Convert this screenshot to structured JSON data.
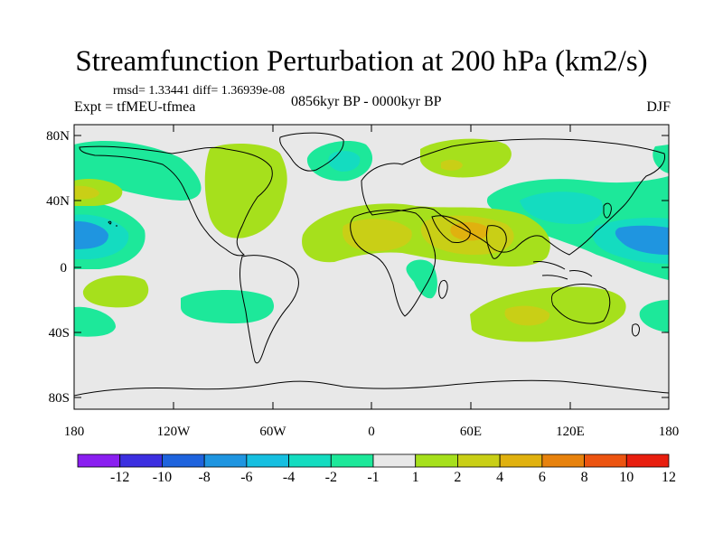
{
  "title": "Streamfunction Perturbation at 200 hPa (km2/s)",
  "stats": "rmsd= 1.33441 diff= 1.36939e-08",
  "experiment": "Expt = tfMEU-tfmea",
  "period": "0856kyr BP - 0000kyr BP",
  "season": "DJF",
  "map": {
    "projection": "cylindrical equidistant",
    "lat_labels": [
      "80N",
      "40N",
      "0",
      "40S",
      "80S"
    ],
    "lon_labels": [
      "180",
      "120W",
      "60W",
      "0",
      "60E",
      "120E",
      "180"
    ]
  },
  "colorbar": {
    "labels": [
      "-12",
      "-10",
      "-8",
      "-6",
      "-4",
      "-2",
      "-1",
      "1",
      "2",
      "4",
      "6",
      "8",
      "10",
      "12"
    ],
    "colors": [
      "#8a1ff0",
      "#3c2fe0",
      "#1e63dd",
      "#1f95e0",
      "#16bfe0",
      "#14dcc0",
      "#1de89a",
      "#e8e8e8",
      "#a6e01c",
      "#c9cf16",
      "#e0b10f",
      "#e7820d",
      "#ec5410",
      "#e81e0e"
    ]
  },
  "contour_regions": [
    {
      "name": "north-atlantic-positive",
      "level": "1 to 2",
      "color": "#a6e01c"
    },
    {
      "name": "sahara-arabia-positive",
      "level": "2 to 4",
      "color": "#c9cf16"
    },
    {
      "name": "southern-indian-positive",
      "level": "2 to 4",
      "color": "#c9cf16"
    },
    {
      "name": "east-pacific-negative",
      "level": "-4 to -6",
      "color": "#1f95e0"
    },
    {
      "name": "west-pacific-negative",
      "level": "-4 to -6",
      "color": "#1f95e0"
    },
    {
      "name": "south-pacific-negative",
      "level": "-1 to -2",
      "color": "#1de89a"
    }
  ]
}
